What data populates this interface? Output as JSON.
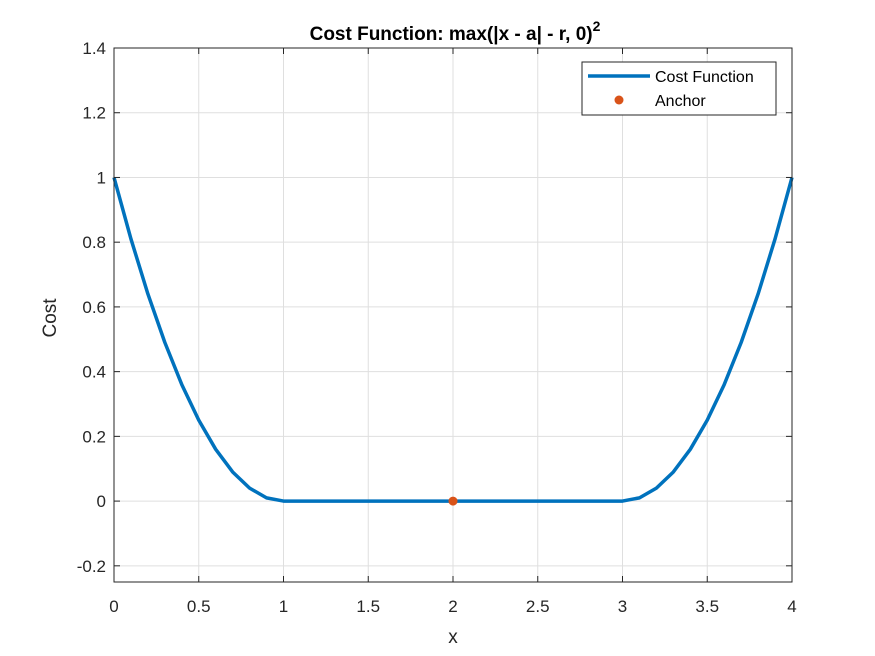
{
  "chart_data": {
    "type": "line",
    "title": "Cost Function: max(|x - a| - r, 0)",
    "title_superscript": "2",
    "xlabel": "x",
    "ylabel": "Cost",
    "xlim": [
      0,
      4
    ],
    "ylim": [
      -0.25,
      1.4
    ],
    "xticks": [
      0,
      0.5,
      1,
      1.5,
      2,
      2.5,
      3,
      3.5,
      4
    ],
    "yticks": [
      -0.2,
      0,
      0.2,
      0.4,
      0.6,
      0.8,
      1,
      1.2,
      1.4
    ],
    "grid": true,
    "legend_position": "top-right",
    "series": [
      {
        "name": "Cost Function",
        "kind": "line",
        "color": "#0072BD",
        "x": [
          0,
          0.1,
          0.2,
          0.3,
          0.4,
          0.5,
          0.6,
          0.7,
          0.8,
          0.9,
          1.0,
          1.5,
          2.0,
          2.5,
          3.0,
          3.1,
          3.2,
          3.3,
          3.4,
          3.5,
          3.6,
          3.7,
          3.8,
          3.9,
          4.0
        ],
        "y": [
          1,
          0.81,
          0.64,
          0.49,
          0.36,
          0.25,
          0.16,
          0.09,
          0.04,
          0.01,
          0,
          0,
          0,
          0,
          0,
          0.01,
          0.04,
          0.09,
          0.16,
          0.25,
          0.36,
          0.49,
          0.64,
          0.81,
          1
        ]
      },
      {
        "name": "Anchor",
        "kind": "marker",
        "color": "#D95319",
        "x": [
          2
        ],
        "y": [
          0
        ]
      }
    ]
  }
}
